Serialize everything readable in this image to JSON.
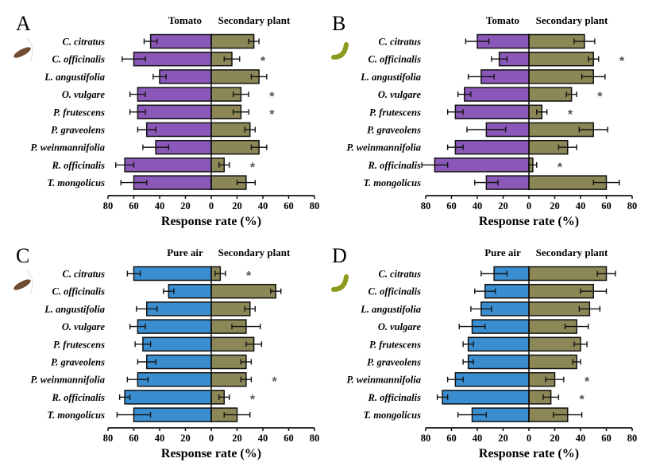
{
  "chart_data": [
    {
      "type": "bar",
      "panel": "A",
      "insect": "brown-beetle",
      "left_header": "Tomato",
      "right_header": "Secondary plant",
      "xlabel": "Response rate (%)",
      "xticks": [
        "80",
        "60",
        "40",
        "20",
        "0",
        "20",
        "40",
        "60",
        "80"
      ],
      "xlim": [
        -80,
        80
      ],
      "categories": [
        "C. citratus",
        "C. officinalis",
        "L. angustifolia",
        "O. vulgare",
        "P. frutescens",
        "P. graveolens",
        "P. weinmannifolia",
        "R. officinalis",
        "T. mongolicus"
      ],
      "series": [
        {
          "name": "Tomato",
          "color": "#8a58b8",
          "values": [
            47,
            60,
            40,
            57,
            57,
            50,
            43,
            67,
            60
          ],
          "errors": [
            5,
            9,
            5,
            6,
            6,
            7,
            10,
            7,
            10
          ]
        },
        {
          "name": "Secondary plant",
          "color": "#8c8756",
          "values": [
            33,
            16,
            37,
            23,
            23,
            30,
            37,
            10,
            27
          ],
          "errors": [
            4,
            6,
            6,
            6,
            6,
            4,
            6,
            4,
            7
          ]
        }
      ],
      "significant": [
        false,
        true,
        false,
        true,
        true,
        false,
        false,
        true,
        false
      ],
      "significance_mark": "*"
    },
    {
      "type": "bar",
      "panel": "B",
      "insect": "green-caterpillar",
      "left_header": "Tomato",
      "right_header": "Secondary plant",
      "xlabel": "Response rate (%)",
      "xticks": [
        "80",
        "60",
        "40",
        "20",
        "0",
        "20",
        "40",
        "60",
        "80"
      ],
      "xlim": [
        -80,
        80
      ],
      "categories": [
        "C. citratus",
        "C. officinalis",
        "L. angustifolia",
        "O. vulgare",
        "P. frutescens",
        "P. graveolens",
        "P. weinmannifolia",
        "R. officinalis",
        "T. mongolicus"
      ],
      "series": [
        {
          "name": "Tomato",
          "color": "#8a58b8",
          "values": [
            40,
            23,
            37,
            50,
            57,
            33,
            57,
            73,
            33
          ],
          "errors": [
            9,
            6,
            10,
            5,
            6,
            15,
            6,
            10,
            9
          ]
        },
        {
          "name": "Secondary plant",
          "color": "#8c8756",
          "values": [
            43,
            50,
            50,
            33,
            10,
            50,
            30,
            3,
            60
          ],
          "errors": [
            8,
            4,
            9,
            4,
            4,
            11,
            7,
            3,
            10
          ]
        }
      ],
      "significant": [
        false,
        true,
        false,
        true,
        true,
        false,
        false,
        true,
        false
      ],
      "significance_mark": "*"
    },
    {
      "type": "bar",
      "panel": "C",
      "insect": "brown-beetle",
      "left_header": "Pure air",
      "right_header": "Secondary plant",
      "xlabel": "Response rate (%)",
      "xticks": [
        "80",
        "60",
        "40",
        "20",
        "0",
        "20",
        "40",
        "60",
        "80"
      ],
      "xlim": [
        -80,
        80
      ],
      "categories": [
        "C. citratus",
        "C. officinalis",
        "L. angustifolia",
        "O. vulgare",
        "P. frutescens",
        "P. graveolens",
        "P. weinmannifolia",
        "R. officinalis",
        "T. mongolicus"
      ],
      "series": [
        {
          "name": "Pure air",
          "color": "#3a8ed0",
          "values": [
            60,
            33,
            50,
            57,
            53,
            50,
            57,
            67,
            60
          ],
          "errors": [
            5,
            4,
            8,
            6,
            6,
            7,
            8,
            4,
            13
          ]
        },
        {
          "name": "Secondary plant",
          "color": "#8c8756",
          "values": [
            7,
            50,
            30,
            27,
            33,
            27,
            27,
            10,
            20
          ],
          "errors": [
            4,
            4,
            4,
            11,
            6,
            4,
            4,
            4,
            10
          ]
        }
      ],
      "significant": [
        true,
        false,
        false,
        false,
        false,
        false,
        true,
        true,
        false
      ],
      "significance_mark": "*"
    },
    {
      "type": "bar",
      "panel": "D",
      "insect": "green-caterpillar",
      "left_header": "Pure air",
      "right_header": "Secondary plant",
      "xlabel": "Response rate (%)",
      "xticks": [
        "80",
        "60",
        "40",
        "20",
        "0",
        "20",
        "40",
        "60",
        "80"
      ],
      "xlim": [
        -80,
        80
      ],
      "categories": [
        "C. citratus",
        "C. officinalis",
        "L. angustifolia",
        "O. vulgare",
        "P. frutescens",
        "P. graveolens",
        "P. weinmannifolia",
        "R. officinalis",
        "T. mongolicus"
      ],
      "series": [
        {
          "name": "Pure air",
          "color": "#3a8ed0",
          "values": [
            27,
            34,
            37,
            44,
            47,
            47,
            57,
            67,
            44
          ],
          "errors": [
            10,
            8,
            8,
            10,
            4,
            4,
            6,
            4,
            11
          ]
        },
        {
          "name": "Secondary plant",
          "color": "#8c8756",
          "values": [
            60,
            50,
            47,
            37,
            40,
            37,
            20,
            17,
            30
          ],
          "errors": [
            7,
            10,
            8,
            9,
            5,
            3,
            7,
            6,
            11
          ]
        }
      ],
      "significant": [
        false,
        false,
        false,
        false,
        false,
        false,
        true,
        true,
        false
      ],
      "significance_mark": "*"
    }
  ]
}
